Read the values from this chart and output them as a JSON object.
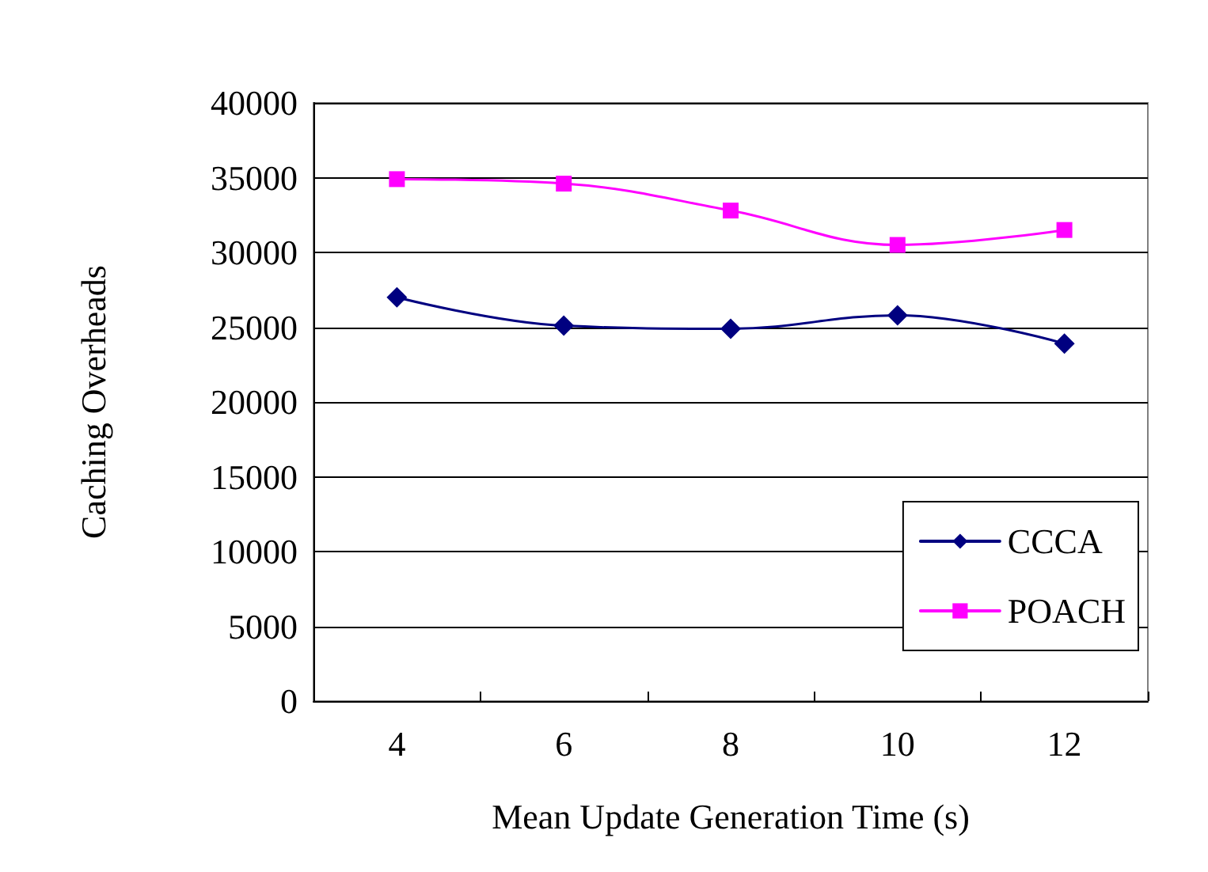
{
  "chart_data": {
    "type": "line",
    "xlabel": "Mean Update Generation Time (s)",
    "ylabel": "Caching Overheads",
    "categories": [
      "4",
      "6",
      "8",
      "10",
      "12"
    ],
    "series": [
      {
        "name": "CCCA",
        "color": "#000080",
        "marker": "diamond",
        "values": [
          27000,
          25100,
          24900,
          25800,
          23900
        ]
      },
      {
        "name": "POACH",
        "color": "#ff00ff",
        "marker": "square",
        "values": [
          34900,
          34600,
          32800,
          30500,
          31500
        ]
      }
    ],
    "ylim": [
      0,
      40000
    ],
    "yticks": [
      0,
      5000,
      10000,
      15000,
      20000,
      25000,
      30000,
      35000,
      40000
    ],
    "grid": "y",
    "legend": "bottom right",
    "line_style": "solid"
  }
}
